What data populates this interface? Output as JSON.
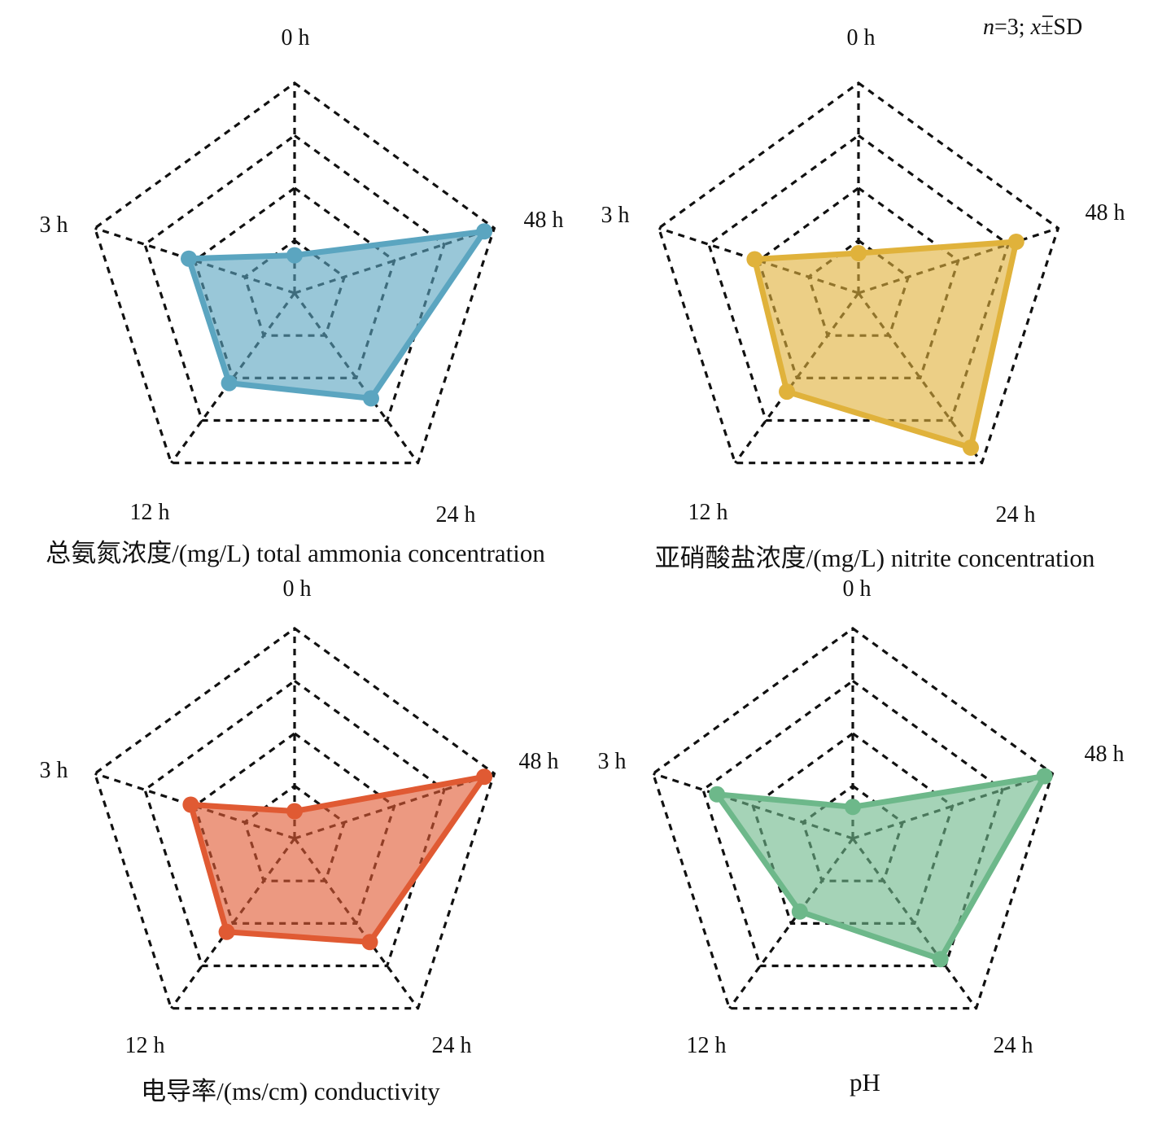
{
  "note": {
    "n_label": "n",
    "n_rest": "=3; ",
    "x_label": "x",
    "sd_rest": "±SD"
  },
  "chart_data": [
    {
      "type": "radar",
      "title": "总氨氮浓度/(mg/L) total ammonia concentration",
      "axes": [
        "0 h",
        "48 h",
        "24 h",
        "12 h",
        "3 h"
      ],
      "levels": 4,
      "range": [
        0,
        1
      ],
      "color": "#5ba5c0",
      "values": [
        0.18,
        0.95,
        0.62,
        0.53,
        0.53
      ]
    },
    {
      "type": "radar",
      "title": "亚硝酸盐浓度/(mg/L) nitrite concentration",
      "axes": [
        "0 h",
        "48 h",
        "24 h",
        "12 h",
        "3 h"
      ],
      "levels": 4,
      "range": [
        0,
        1
      ],
      "color": "#e0b23b",
      "values": [
        0.19,
        0.79,
        0.91,
        0.58,
        0.52
      ]
    },
    {
      "type": "radar",
      "title": "电导率/(ms/cm) conductivity",
      "axes": [
        "0 h",
        "48 h",
        "24 h",
        "12 h",
        "3 h"
      ],
      "levels": 4,
      "range": [
        0,
        1
      ],
      "color": "#e05a33",
      "values": [
        0.13,
        0.95,
        0.61,
        0.55,
        0.52
      ]
    },
    {
      "type": "radar",
      "title": "pH",
      "axes": [
        "0 h",
        "48 h",
        "24 h",
        "12 h",
        "3 h"
      ],
      "levels": 4,
      "range": [
        0,
        1
      ],
      "color": "#6db88a",
      "values": [
        0.15,
        0.96,
        0.71,
        0.43,
        0.68
      ]
    }
  ]
}
